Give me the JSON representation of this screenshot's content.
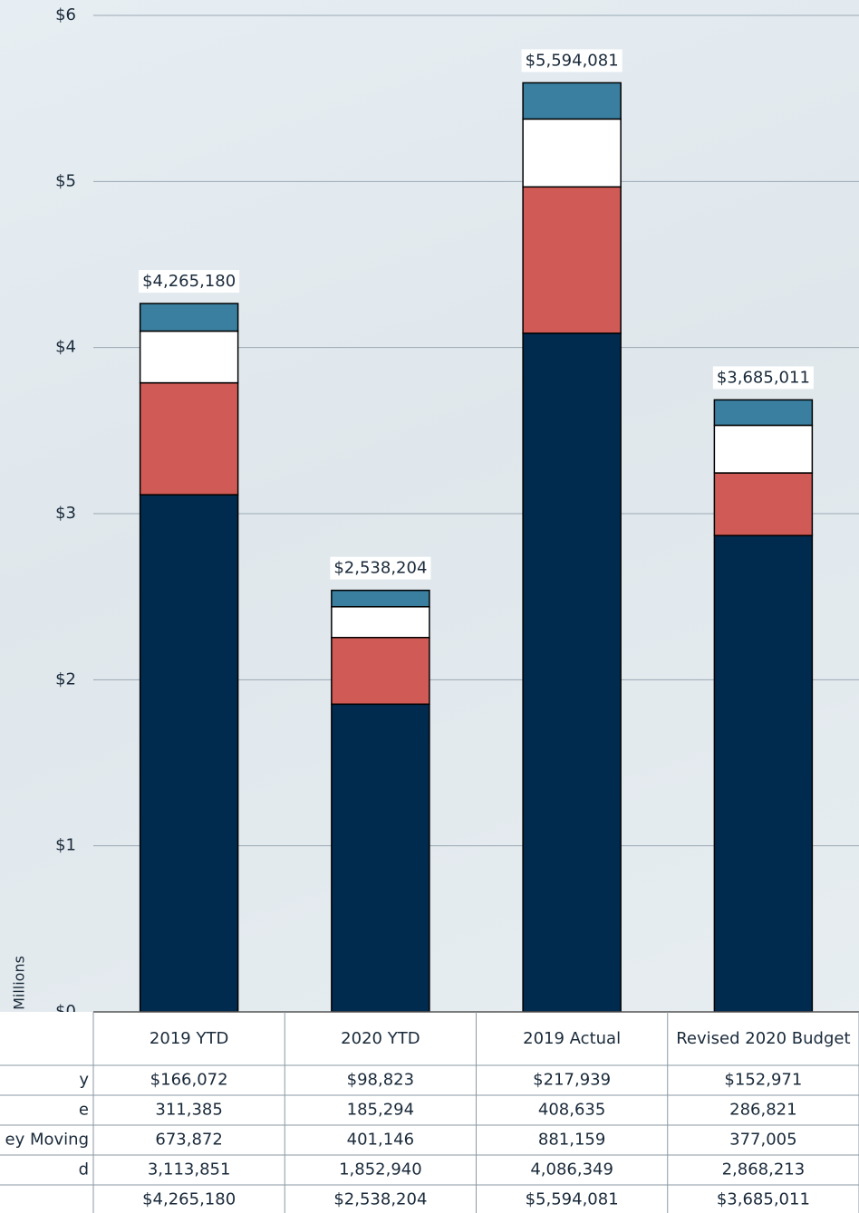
{
  "chart_data": {
    "type": "stacked_bar",
    "y_label": "Millions",
    "categories": [
      "2019 YTD",
      "2020 YTD",
      "2019 Actual",
      "Revised 2020 Budget"
    ],
    "series": [
      {
        "name": "y",
        "color": "#3a7fa0",
        "values": [
          0.166072,
          0.098823,
          0.217939,
          0.152971
        ],
        "value_labels": [
          "$166,072",
          "$98,823",
          "$217,939",
          "$152,971"
        ]
      },
      {
        "name": "e",
        "color": "#ffffff",
        "values": [
          0.311385,
          0.185294,
          0.408635,
          0.286821
        ],
        "value_labels": [
          "311,385",
          "185,294",
          "408,635",
          "286,821"
        ]
      },
      {
        "name": "ey Moving",
        "color": "#d05a55",
        "values": [
          0.673872,
          0.401146,
          0.881159,
          0.377005
        ],
        "value_labels": [
          "673,872",
          "401,146",
          "881,159",
          "377,005"
        ]
      },
      {
        "name": "d",
        "color": "#012a4f",
        "values": [
          3.113851,
          1.85294,
          4.086349,
          2.868213
        ],
        "value_labels": [
          "3,113,851",
          "1,852,940",
          "4,086,349",
          "2,868,213"
        ]
      }
    ],
    "totals": {
      "values": [
        4.26518,
        2.538204,
        5.594081,
        3.685011
      ],
      "value_labels": [
        "$4,265,180",
        "$2,538,204",
        "$5,594,081",
        "$3,685,011"
      ]
    },
    "ylim": [
      0,
      6
    ],
    "yticks": [
      {
        "value": 0,
        "label": "$0"
      },
      {
        "value": 1,
        "label": "$1"
      },
      {
        "value": 2,
        "label": "$2"
      },
      {
        "value": 3,
        "label": "$3"
      },
      {
        "value": 4,
        "label": "$4"
      },
      {
        "value": 5,
        "label": "$5"
      },
      {
        "value": 6,
        "label": "$6"
      }
    ],
    "grid": true
  }
}
